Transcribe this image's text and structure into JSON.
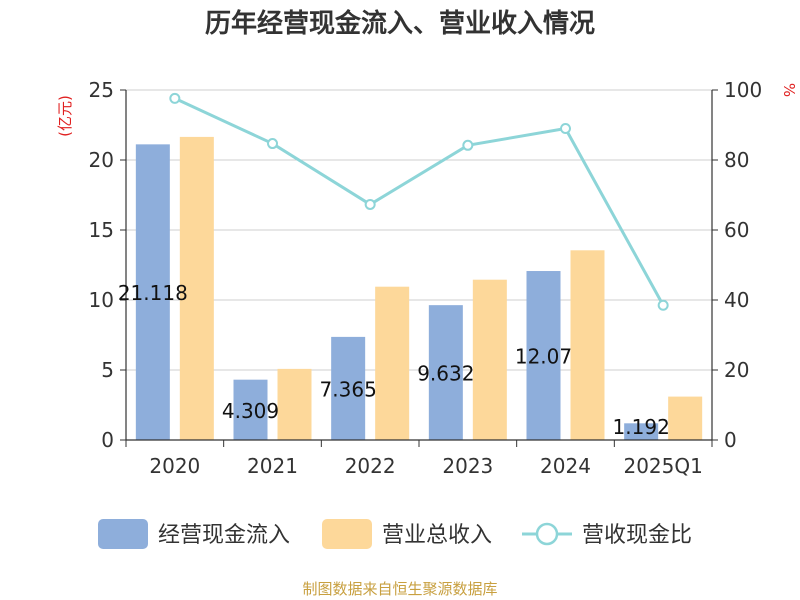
{
  "chart_data": {
    "type": "bar",
    "title": "历年经营现金流入、营业收入情况",
    "categories": [
      "2020",
      "2021",
      "2022",
      "2023",
      "2024",
      "2025Q1"
    ],
    "y_left": {
      "unit": "(亿元)",
      "ylim": [
        0,
        25
      ],
      "ticks": [
        "0",
        "5",
        "10",
        "15",
        "20",
        "25"
      ]
    },
    "y_right": {
      "unit": "%",
      "ylim": [
        0,
        100
      ],
      "ticks": [
        "0",
        "20",
        "40",
        "60",
        "80",
        "100"
      ]
    },
    "series": [
      {
        "name": "经营现金流入",
        "type": "bar",
        "axis": "left",
        "color": "#8eaedb",
        "values": [
          21.118,
          4.309,
          7.365,
          9.632,
          12.07,
          1.192
        ],
        "labels": [
          "21.118",
          "4.309",
          "7.365",
          "9.632",
          "12.07",
          "1.192"
        ]
      },
      {
        "name": "营业总收入",
        "type": "bar",
        "axis": "left",
        "color": "#fdd89a",
        "values": [
          21.65,
          5.08,
          10.95,
          11.45,
          13.55,
          3.1
        ]
      },
      {
        "name": "营收现金比",
        "type": "line",
        "axis": "right",
        "color": "#8dd5d8",
        "values": [
          97.6,
          84.7,
          67.3,
          84.2,
          89.0,
          38.5
        ]
      }
    ],
    "grid": true,
    "legend": "bottom",
    "source": "制图数据来自恒生聚源数据库"
  }
}
